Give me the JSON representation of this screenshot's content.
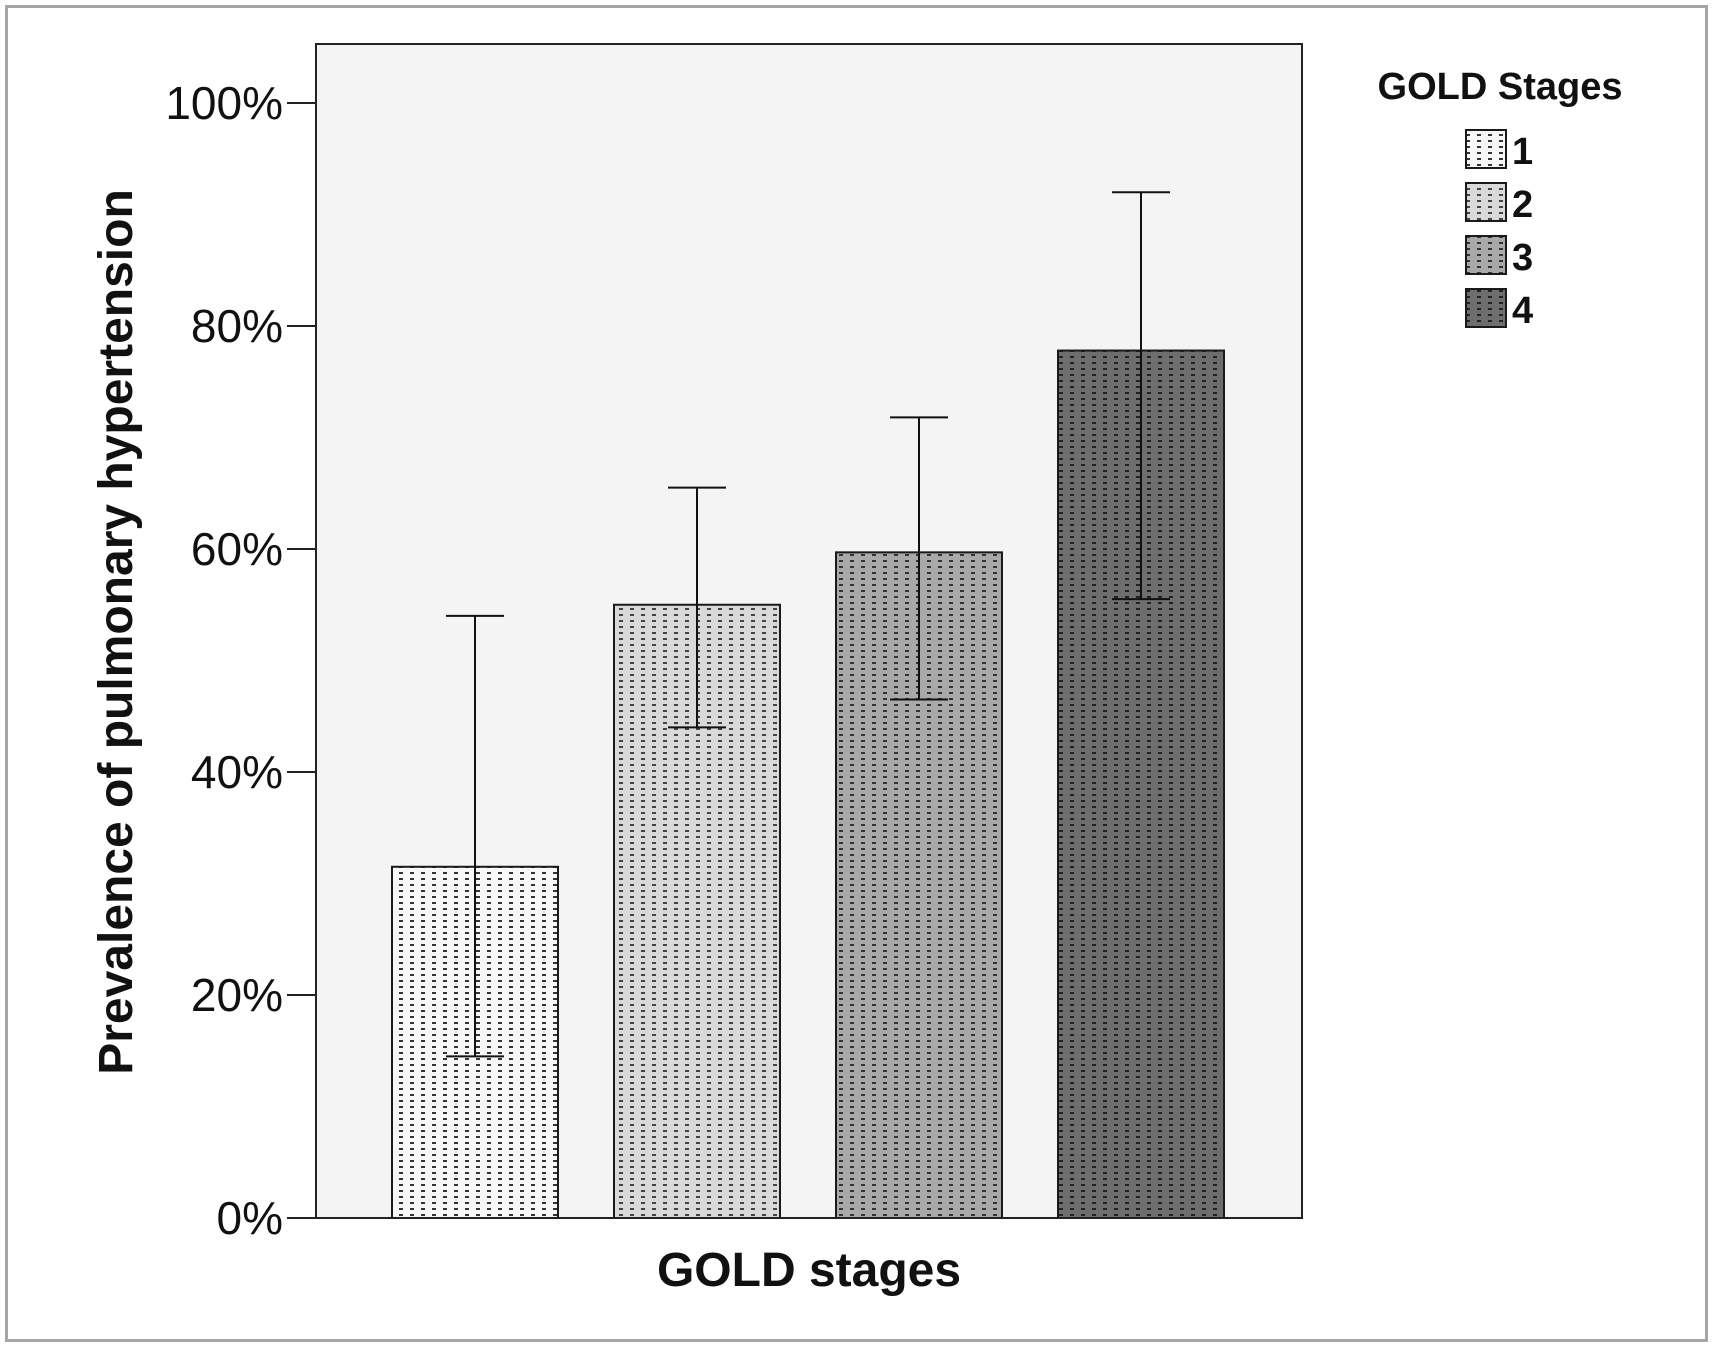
{
  "chart_data": {
    "type": "bar",
    "title": "",
    "xlabel": "GOLD stages",
    "ylabel": "Prevalence of pulmonary hypertension",
    "ylim": [
      0,
      105
    ],
    "y_ticks": [
      0,
      20,
      40,
      60,
      80,
      100
    ],
    "y_tick_labels": [
      "0%",
      "20%",
      "40%",
      "60%",
      "80%",
      "100%"
    ],
    "grid": false,
    "legend": {
      "title": "GOLD Stages",
      "position": "top-right",
      "entries": [
        "1",
        "2",
        "3",
        "4"
      ]
    },
    "categories": [
      "1",
      "2",
      "3",
      "4"
    ],
    "values": [
      31.5,
      55.0,
      59.7,
      77.8
    ],
    "error_bars": {
      "lower": [
        14.5,
        44.0,
        46.5,
        55.5
      ],
      "upper": [
        54.0,
        65.5,
        71.8,
        92.0
      ]
    },
    "colors": [
      "#f7f7f7",
      "#d9d9d9",
      "#a9a9a9",
      "#6e6e6e"
    ],
    "plot_background": "#f4f4f4"
  }
}
